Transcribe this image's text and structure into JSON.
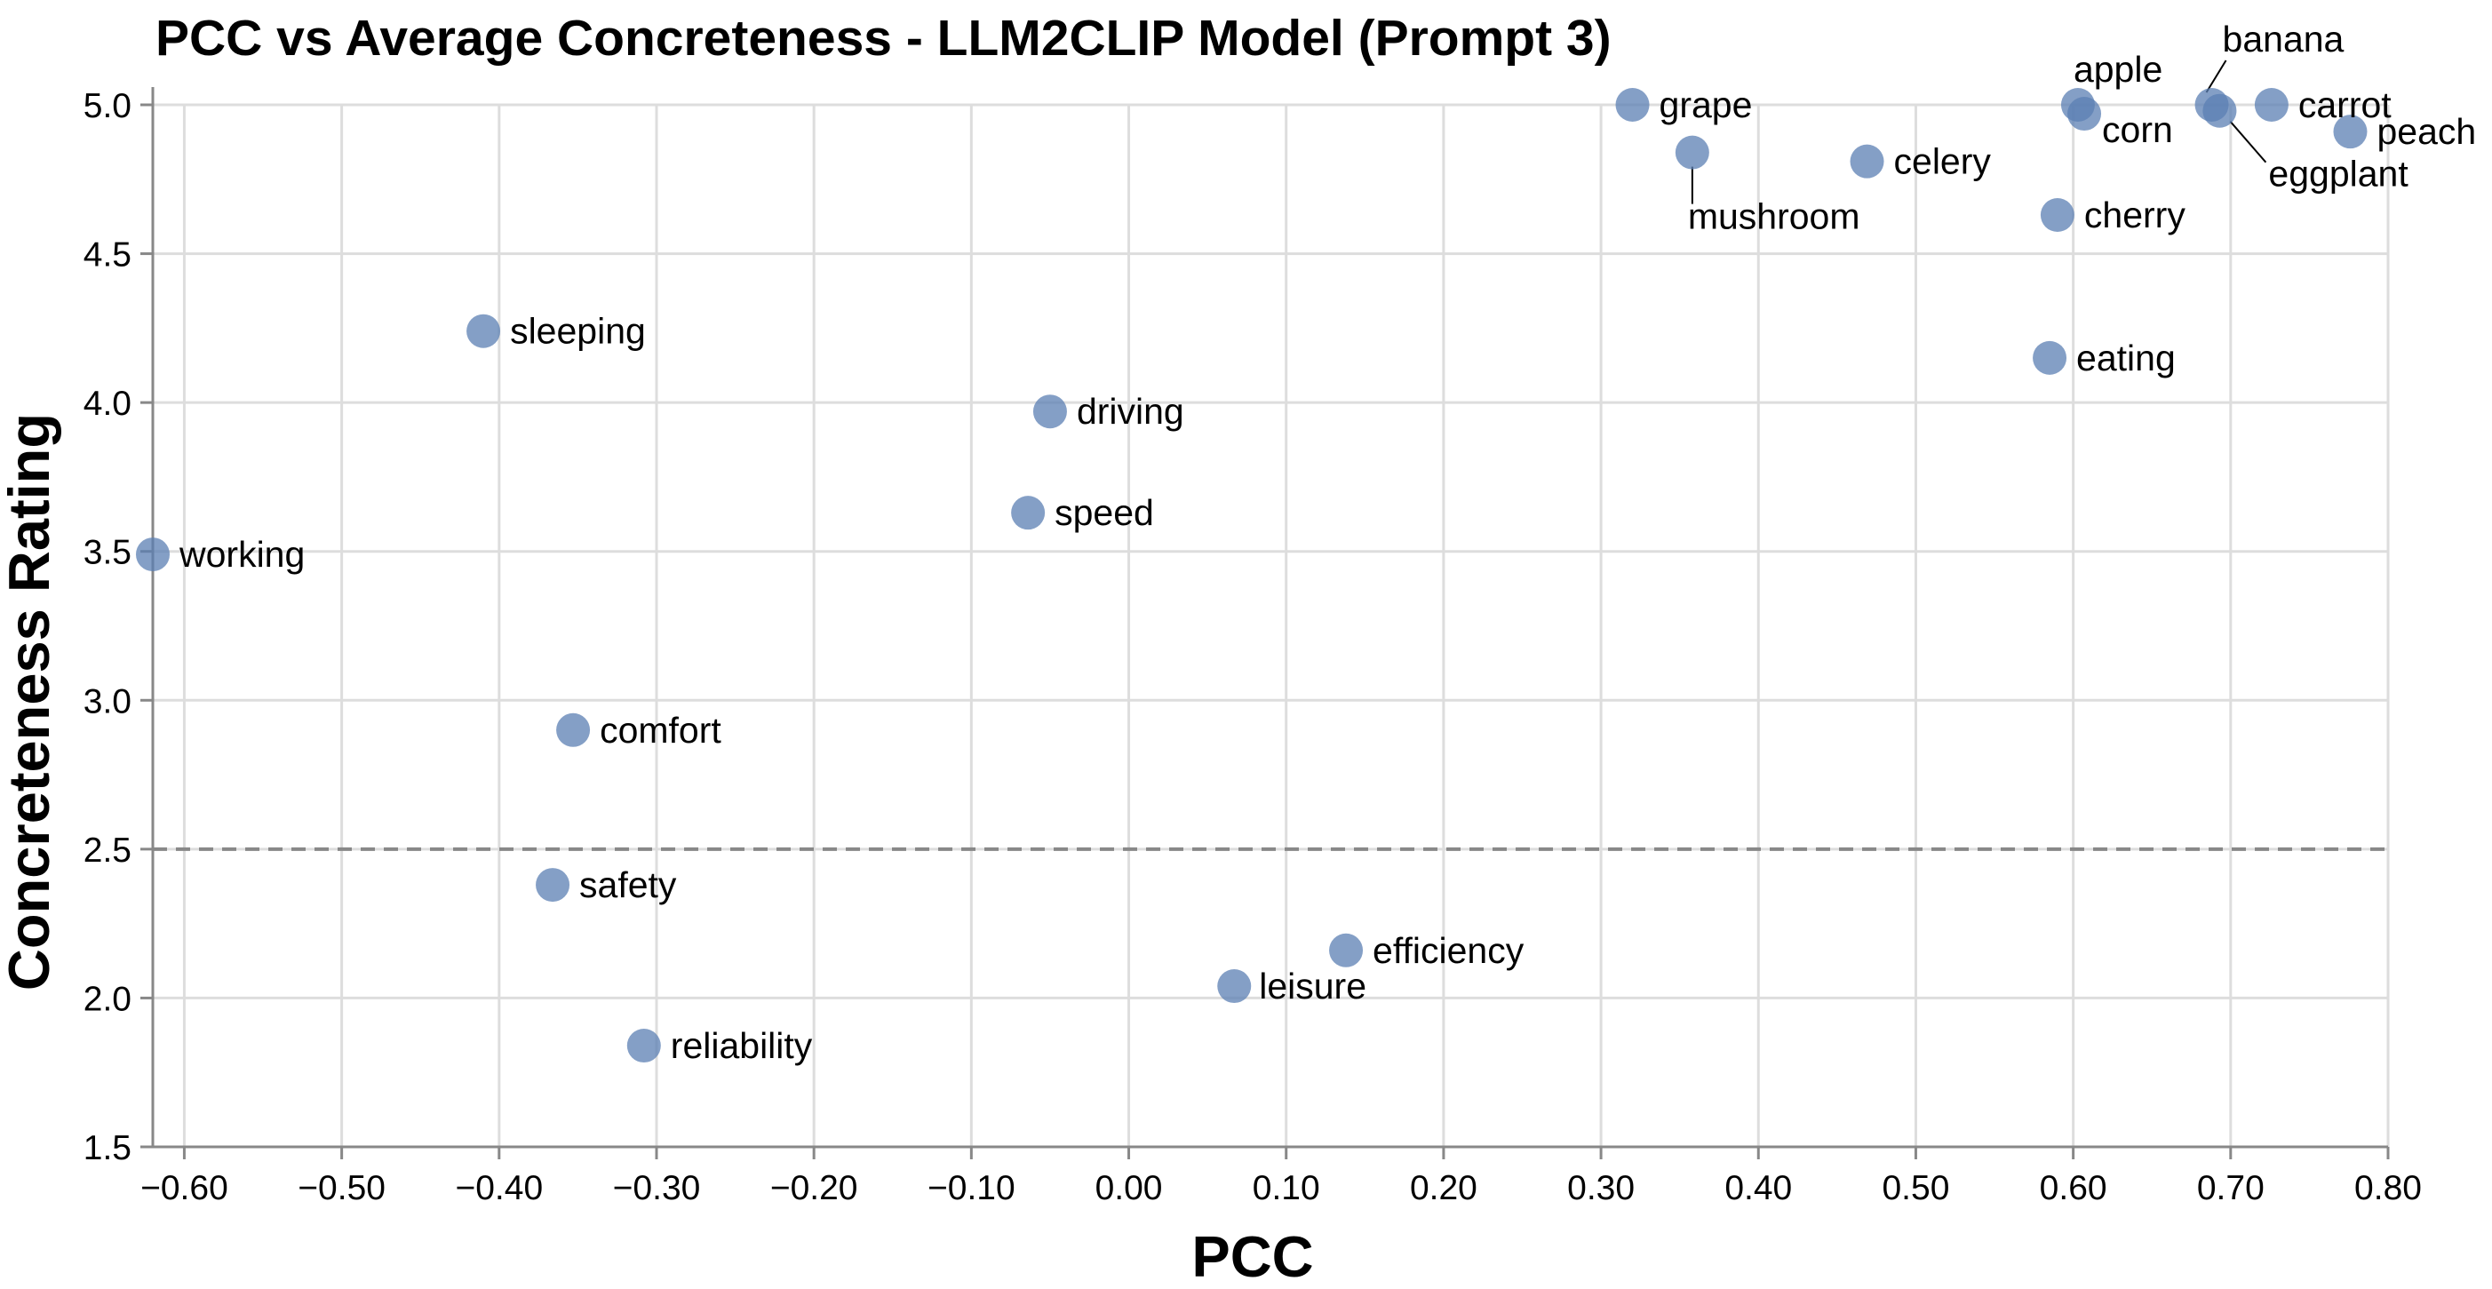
{
  "chart_data": {
    "type": "scatter",
    "title": "PCC vs Average Concreteness - LLM2CLIP Model (Prompt 3)",
    "xlabel": "PCC",
    "ylabel": "Concreteness Rating",
    "xlim": [
      -0.62,
      0.8
    ],
    "ylim": [
      1.5,
      5.0
    ],
    "x_ticks": [
      "−0.60",
      "−0.50",
      "−0.40",
      "−0.30",
      "−0.20",
      "−0.10",
      "0.00",
      "0.10",
      "0.20",
      "0.30",
      "0.40",
      "0.50",
      "0.60",
      "0.70",
      "0.80"
    ],
    "x_tick_values": [
      -0.6,
      -0.5,
      -0.4,
      -0.3,
      -0.2,
      -0.1,
      0.0,
      0.1,
      0.2,
      0.3,
      0.4,
      0.5,
      0.6,
      0.7,
      0.8
    ],
    "y_ticks": [
      "1.5",
      "2.0",
      "2.5",
      "3.0",
      "3.5",
      "4.0",
      "4.5",
      "5.0"
    ],
    "y_tick_values": [
      1.5,
      2.0,
      2.5,
      3.0,
      3.5,
      4.0,
      4.5,
      5.0
    ],
    "reference_line_y": 2.5,
    "grid": true,
    "points": [
      {
        "label": "working",
        "x": -0.62,
        "y": 3.49
      },
      {
        "label": "sleeping",
        "x": -0.41,
        "y": 4.24
      },
      {
        "label": "comfort",
        "x": -0.353,
        "y": 2.9
      },
      {
        "label": "safety",
        "x": -0.366,
        "y": 2.38
      },
      {
        "label": "reliability",
        "x": -0.308,
        "y": 1.84
      },
      {
        "label": "driving",
        "x": -0.05,
        "y": 3.97
      },
      {
        "label": "speed",
        "x": -0.064,
        "y": 3.63
      },
      {
        "label": "leisure",
        "x": 0.067,
        "y": 2.04
      },
      {
        "label": "efficiency",
        "x": 0.138,
        "y": 2.16
      },
      {
        "label": "grape",
        "x": 0.32,
        "y": 5.0
      },
      {
        "label": "mushroom",
        "x": 0.358,
        "y": 4.84
      },
      {
        "label": "celery",
        "x": 0.469,
        "y": 4.81
      },
      {
        "label": "apple",
        "x": 0.603,
        "y": 5.0
      },
      {
        "label": "corn",
        "x": 0.607,
        "y": 4.97
      },
      {
        "label": "cherry",
        "x": 0.59,
        "y": 4.63
      },
      {
        "label": "eating",
        "x": 0.585,
        "y": 4.15
      },
      {
        "label": "banana",
        "x": 0.688,
        "y": 5.0
      },
      {
        "label": "eggplant",
        "x": 0.693,
        "y": 4.98
      },
      {
        "label": "carrot",
        "x": 0.726,
        "y": 5.0
      },
      {
        "label": "peach",
        "x": 0.776,
        "y": 4.91
      }
    ]
  }
}
